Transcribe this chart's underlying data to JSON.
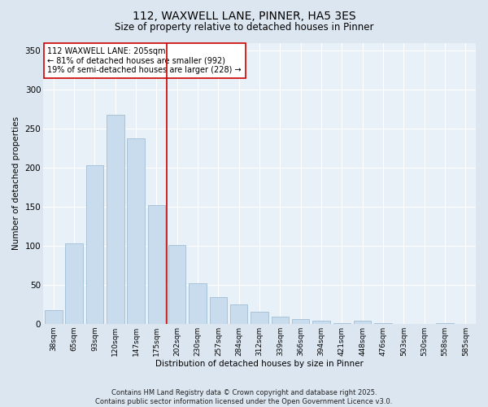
{
  "title": "112, WAXWELL LANE, PINNER, HA5 3ES",
  "subtitle": "Size of property relative to detached houses in Pinner",
  "xlabel": "Distribution of detached houses by size in Pinner",
  "ylabel": "Number of detached properties",
  "categories": [
    "38sqm",
    "65sqm",
    "93sqm",
    "120sqm",
    "147sqm",
    "175sqm",
    "202sqm",
    "230sqm",
    "257sqm",
    "284sqm",
    "312sqm",
    "339sqm",
    "366sqm",
    "394sqm",
    "421sqm",
    "448sqm",
    "476sqm",
    "503sqm",
    "530sqm",
    "558sqm",
    "585sqm"
  ],
  "values": [
    17,
    103,
    203,
    268,
    238,
    152,
    101,
    52,
    34,
    25,
    15,
    9,
    6,
    4,
    1,
    4,
    1,
    0,
    0,
    1,
    0
  ],
  "bar_color": "#c9dced",
  "bar_edge_color": "#a0bdd4",
  "vline_color": "#cc0000",
  "vline_x_idx": 6,
  "annotation_text": "112 WAXWELL LANE: 205sqm\n← 81% of detached houses are smaller (992)\n19% of semi-detached houses are larger (228) →",
  "annotation_box_color": "white",
  "annotation_box_edge_color": "#cc0000",
  "ylim": [
    0,
    360
  ],
  "yticks": [
    0,
    50,
    100,
    150,
    200,
    250,
    300,
    350
  ],
  "footer": "Contains HM Land Registry data © Crown copyright and database right 2025.\nContains public sector information licensed under the Open Government Licence v3.0.",
  "bg_color": "#dce6f0",
  "plot_bg_color": "#e8f0f8",
  "grid_color": "#ffffff"
}
